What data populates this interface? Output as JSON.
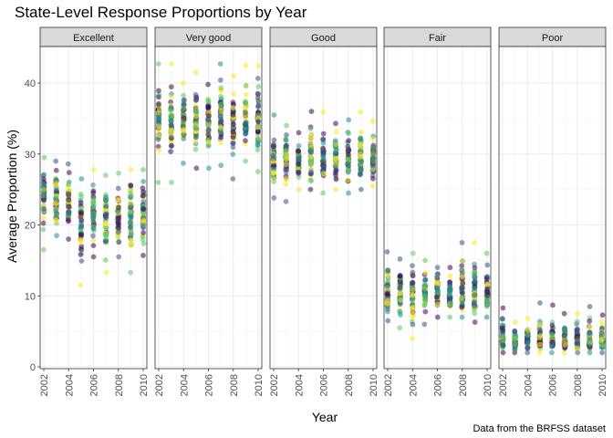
{
  "chart_data": {
    "type": "scatter",
    "title": "State-Level Response Proportions by Year",
    "xlabel": "Year",
    "ylabel": "Average Proportion (%)",
    "caption": "Data from the BRFSS dataset",
    "xlim": [
      2002,
      2010
    ],
    "ylim": [
      0,
      45
    ],
    "x_ticks": [
      "2002",
      "2004",
      "2006",
      "2008",
      "2010"
    ],
    "y_ticks": [
      "0",
      "10",
      "20",
      "30",
      "40"
    ],
    "grid": true,
    "legend": "none",
    "point_alpha": 0.55,
    "palette": [
      "#440154",
      "#3b528b",
      "#21908c",
      "#5dc863",
      "#fde725"
    ],
    "years": [
      2002,
      2003,
      2004,
      2005,
      2006,
      2007,
      2008,
      2009,
      2010
    ],
    "panels": [
      {
        "name": "Excellent",
        "median": [
          24.0,
          23.5,
          23.0,
          21.0,
          21.5,
          21.0,
          21.0,
          21.5,
          21.5
        ],
        "min": [
          16.5,
          18.5,
          18.0,
          11.5,
          15.5,
          13.3,
          15.5,
          13.3,
          15.7
        ],
        "max": [
          29.5,
          29.0,
          28.6,
          26.5,
          27.8,
          27.0,
          27.3,
          27.8,
          27.8
        ]
      },
      {
        "name": "Very good",
        "median": [
          34.5,
          34.0,
          35.0,
          35.0,
          34.5,
          35.0,
          35.0,
          34.5,
          35.0
        ],
        "min": [
          26.0,
          26.0,
          28.7,
          28.0,
          28.0,
          28.4,
          26.5,
          29.0,
          27.5
        ],
        "max": [
          42.7,
          42.7,
          40.0,
          41.5,
          39.8,
          42.7,
          41.0,
          42.5,
          42.4
        ]
      },
      {
        "name": "Good",
        "median": [
          29.0,
          29.5,
          29.0,
          30.0,
          29.0,
          29.0,
          29.5,
          29.5,
          29.5
        ],
        "min": [
          23.8,
          23.3,
          25.0,
          25.0,
          24.5,
          25.0,
          24.5,
          25.0,
          25.5
        ],
        "max": [
          35.5,
          34.0,
          33.0,
          36.0,
          35.9,
          34.3,
          34.8,
          35.9,
          34.6
        ]
      },
      {
        "name": "Fair",
        "median": [
          10.5,
          11.0,
          10.5,
          10.5,
          10.5,
          10.0,
          10.0,
          10.5,
          10.5
        ],
        "min": [
          6.5,
          5.5,
          4.0,
          6.0,
          7.0,
          7.0,
          7.0,
          6.3,
          7.0
        ],
        "max": [
          16.2,
          15.2,
          16.0,
          15.0,
          14.0,
          14.0,
          17.5,
          17.5,
          16.0
        ]
      },
      {
        "name": "Poor",
        "median": [
          3.7,
          3.5,
          3.6,
          3.5,
          3.6,
          3.7,
          3.5,
          3.5,
          3.6
        ],
        "min": [
          2.0,
          2.0,
          2.0,
          2.0,
          2.0,
          2.0,
          2.0,
          2.0,
          2.0
        ],
        "max": [
          8.3,
          6.3,
          6.8,
          9.0,
          8.7,
          7.5,
          7.5,
          8.5,
          7.3
        ]
      }
    ]
  }
}
